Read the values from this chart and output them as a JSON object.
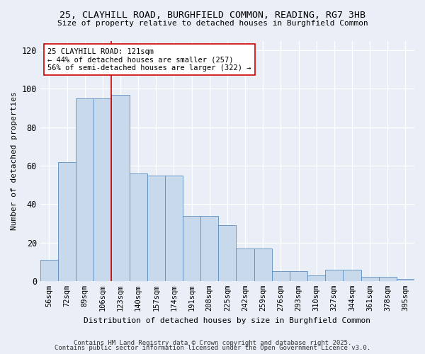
{
  "title1": "25, CLAYHILL ROAD, BURGHFIELD COMMON, READING, RG7 3HB",
  "title2": "Size of property relative to detached houses in Burghfield Common",
  "xlabel": "Distribution of detached houses by size in Burghfield Common",
  "ylabel": "Number of detached properties",
  "categories": [
    "56sqm",
    "72sqm",
    "89sqm",
    "106sqm",
    "123sqm",
    "140sqm",
    "157sqm",
    "174sqm",
    "191sqm",
    "208sqm",
    "225sqm",
    "242sqm",
    "259sqm",
    "276sqm",
    "293sqm",
    "310sqm",
    "327sqm",
    "344sqm",
    "361sqm",
    "378sqm",
    "395sqm"
  ],
  "values": [
    11,
    62,
    95,
    95,
    97,
    56,
    55,
    55,
    34,
    34,
    29,
    17,
    17,
    5,
    5,
    3,
    6,
    6,
    2,
    2,
    1
  ],
  "bar_color": "#c9d9ec",
  "bar_edge_color": "#5b8ec1",
  "vline_x_index": 4,
  "vline_color": "#cc0000",
  "annotation_text": "25 CLAYHILL ROAD: 121sqm\n← 44% of detached houses are smaller (257)\n56% of semi-detached houses are larger (322) →",
  "annotation_box_color": "#ffffff",
  "annotation_box_edge": "#cc0000",
  "footer1": "Contains HM Land Registry data © Crown copyright and database right 2025.",
  "footer2": "Contains public sector information licensed under the Open Government Licence v3.0.",
  "ylim": [
    0,
    125
  ],
  "yticks": [
    0,
    20,
    40,
    60,
    80,
    100,
    120
  ],
  "bg_color": "#eaeff7"
}
